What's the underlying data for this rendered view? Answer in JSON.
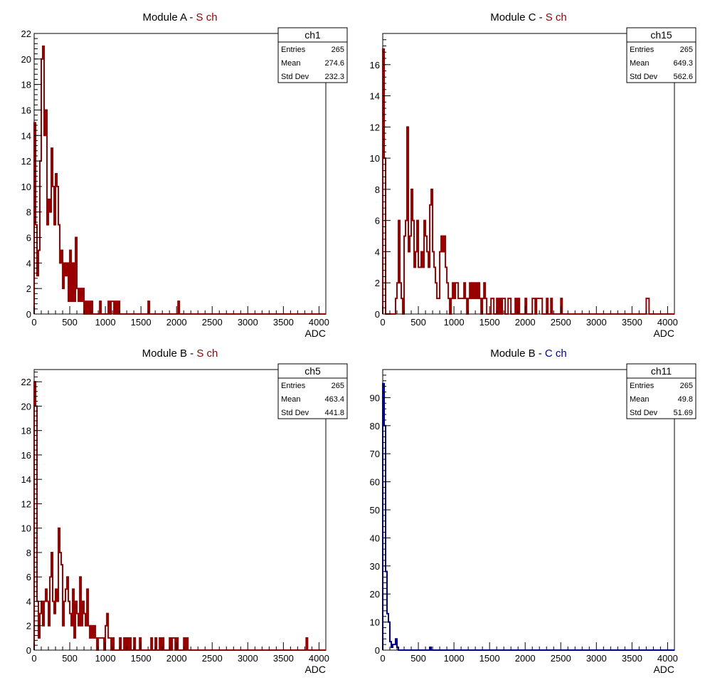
{
  "colors": {
    "s_channel": "#990000",
    "c_channel": "#000099",
    "axis": "#000000",
    "title_prefix": "#000000"
  },
  "chart_data": [
    {
      "type": "histogram",
      "title_prefix": "Module A - ",
      "title_channel": "S ch",
      "channel_color": "s_channel",
      "xlabel": "ADC",
      "ylabel": "",
      "xlim": [
        0,
        4096
      ],
      "ylim": [
        0,
        22
      ],
      "xticks": [
        0,
        500,
        1000,
        1500,
        2000,
        2500,
        3000,
        3500,
        4000
      ],
      "yticks": [
        0,
        2,
        4,
        6,
        8,
        10,
        12,
        14,
        16,
        18,
        20,
        22
      ],
      "grid": false,
      "bin_width": 20,
      "stats": {
        "name": "ch1",
        "rows": [
          [
            "Entries",
            "265"
          ],
          [
            "Mean",
            "274.6"
          ],
          [
            "Std Dev",
            "232.3"
          ]
        ]
      },
      "bins": [
        [
          0,
          15
        ],
        [
          20,
          7
        ],
        [
          40,
          3
        ],
        [
          60,
          5
        ],
        [
          80,
          12
        ],
        [
          100,
          20
        ],
        [
          120,
          21
        ],
        [
          140,
          14
        ],
        [
          160,
          16
        ],
        [
          180,
          7
        ],
        [
          200,
          9
        ],
        [
          220,
          8
        ],
        [
          240,
          13
        ],
        [
          260,
          10
        ],
        [
          280,
          7
        ],
        [
          300,
          11
        ],
        [
          320,
          10
        ],
        [
          340,
          7
        ],
        [
          360,
          4
        ],
        [
          380,
          5
        ],
        [
          400,
          2
        ],
        [
          420,
          4
        ],
        [
          440,
          3
        ],
        [
          460,
          4
        ],
        [
          480,
          1
        ],
        [
          500,
          5
        ],
        [
          520,
          1
        ],
        [
          540,
          4
        ],
        [
          560,
          1
        ],
        [
          580,
          6
        ],
        [
          600,
          2
        ],
        [
          620,
          1
        ],
        [
          640,
          2
        ],
        [
          660,
          1
        ],
        [
          680,
          2
        ],
        [
          720,
          1
        ],
        [
          760,
          1
        ],
        [
          800,
          1
        ],
        [
          920,
          1
        ],
        [
          1040,
          1
        ],
        [
          1080,
          1
        ],
        [
          1100,
          1
        ],
        [
          1140,
          1
        ],
        [
          1180,
          1
        ],
        [
          1600,
          1
        ],
        [
          2020,
          1
        ]
      ]
    },
    {
      "type": "histogram",
      "title_prefix": "Module C - ",
      "title_channel": "S ch",
      "channel_color": "s_channel",
      "xlabel": "ADC",
      "ylabel": "",
      "xlim": [
        0,
        4096
      ],
      "ylim": [
        0,
        18
      ],
      "xticks": [
        0,
        500,
        1000,
        1500,
        2000,
        2500,
        3000,
        3500,
        4000
      ],
      "yticks": [
        0,
        2,
        4,
        6,
        8,
        10,
        12,
        14,
        16
      ],
      "grid": false,
      "bin_width": 20,
      "stats": {
        "name": "ch15",
        "rows": [
          [
            "Entries",
            "265"
          ],
          [
            "Mean",
            "649.3"
          ],
          [
            "Std Dev",
            "562.6"
          ]
        ]
      },
      "bins": [
        [
          0,
          17
        ],
        [
          20,
          10
        ],
        [
          180,
          1
        ],
        [
          200,
          2
        ],
        [
          220,
          6
        ],
        [
          240,
          2
        ],
        [
          260,
          1
        ],
        [
          300,
          5
        ],
        [
          320,
          6
        ],
        [
          340,
          12
        ],
        [
          360,
          4
        ],
        [
          380,
          5
        ],
        [
          400,
          8
        ],
        [
          420,
          6
        ],
        [
          440,
          3
        ],
        [
          460,
          4
        ],
        [
          480,
          6
        ],
        [
          500,
          3
        ],
        [
          520,
          3
        ],
        [
          540,
          4
        ],
        [
          560,
          3
        ],
        [
          580,
          6
        ],
        [
          600,
          5
        ],
        [
          620,
          4
        ],
        [
          640,
          3
        ],
        [
          660,
          7
        ],
        [
          680,
          8
        ],
        [
          700,
          4
        ],
        [
          720,
          3
        ],
        [
          740,
          2
        ],
        [
          760,
          1
        ],
        [
          780,
          1
        ],
        [
          800,
          4
        ],
        [
          820,
          5
        ],
        [
          840,
          4
        ],
        [
          860,
          5
        ],
        [
          880,
          3
        ],
        [
          900,
          2
        ],
        [
          920,
          1
        ],
        [
          960,
          1
        ],
        [
          980,
          2
        ],
        [
          1000,
          1
        ],
        [
          1020,
          2
        ],
        [
          1040,
          2
        ],
        [
          1060,
          1
        ],
        [
          1080,
          1
        ],
        [
          1100,
          1
        ],
        [
          1120,
          1
        ],
        [
          1140,
          2
        ],
        [
          1160,
          1
        ],
        [
          1200,
          1
        ],
        [
          1220,
          2
        ],
        [
          1240,
          1
        ],
        [
          1260,
          2
        ],
        [
          1280,
          1
        ],
        [
          1300,
          2
        ],
        [
          1320,
          1
        ],
        [
          1340,
          2
        ],
        [
          1360,
          1
        ],
        [
          1400,
          1
        ],
        [
          1420,
          2
        ],
        [
          1440,
          1
        ],
        [
          1520,
          1
        ],
        [
          1540,
          1
        ],
        [
          1600,
          1
        ],
        [
          1640,
          1
        ],
        [
          1680,
          1
        ],
        [
          1700,
          1
        ],
        [
          1760,
          1
        ],
        [
          1780,
          1
        ],
        [
          1860,
          1
        ],
        [
          1900,
          1
        ],
        [
          2000,
          1
        ],
        [
          2100,
          1
        ],
        [
          2120,
          1
        ],
        [
          2160,
          1
        ],
        [
          2180,
          1
        ],
        [
          2200,
          1
        ],
        [
          2220,
          1
        ],
        [
          2300,
          1
        ],
        [
          2360,
          1
        ],
        [
          2500,
          1
        ],
        [
          3700,
          1
        ],
        [
          3720,
          1
        ]
      ]
    },
    {
      "type": "histogram",
      "title_prefix": "Module B - ",
      "title_channel": "S ch",
      "channel_color": "s_channel",
      "xlabel": "ADC",
      "ylabel": "",
      "xlim": [
        0,
        4096
      ],
      "ylim": [
        0,
        23
      ],
      "xticks": [
        0,
        500,
        1000,
        1500,
        2000,
        2500,
        3000,
        3500,
        4000
      ],
      "yticks": [
        0,
        2,
        4,
        6,
        8,
        10,
        12,
        14,
        16,
        18,
        20,
        22
      ],
      "grid": false,
      "bin_width": 20,
      "stats": {
        "name": "ch5",
        "rows": [
          [
            "Entries",
            "265"
          ],
          [
            "Mean",
            "463.4"
          ],
          [
            "Std Dev",
            "441.8"
          ]
        ]
      },
      "bins": [
        [
          0,
          22
        ],
        [
          20,
          20
        ],
        [
          40,
          4
        ],
        [
          60,
          1
        ],
        [
          80,
          3
        ],
        [
          100,
          4
        ],
        [
          120,
          2
        ],
        [
          140,
          4
        ],
        [
          160,
          5
        ],
        [
          180,
          4
        ],
        [
          200,
          2
        ],
        [
          220,
          6
        ],
        [
          240,
          8
        ],
        [
          260,
          4
        ],
        [
          280,
          3
        ],
        [
          300,
          5
        ],
        [
          320,
          4
        ],
        [
          340,
          10
        ],
        [
          360,
          8
        ],
        [
          380,
          7
        ],
        [
          400,
          2
        ],
        [
          420,
          4
        ],
        [
          440,
          5
        ],
        [
          460,
          6
        ],
        [
          480,
          4
        ],
        [
          500,
          3
        ],
        [
          520,
          2
        ],
        [
          540,
          5
        ],
        [
          560,
          1
        ],
        [
          580,
          4
        ],
        [
          600,
          3
        ],
        [
          620,
          2
        ],
        [
          640,
          6
        ],
        [
          660,
          2
        ],
        [
          680,
          4
        ],
        [
          700,
          3
        ],
        [
          720,
          2
        ],
        [
          740,
          5
        ],
        [
          760,
          2
        ],
        [
          780,
          1
        ],
        [
          800,
          2
        ],
        [
          820,
          1
        ],
        [
          840,
          2
        ],
        [
          860,
          1
        ],
        [
          900,
          1
        ],
        [
          920,
          1
        ],
        [
          940,
          1
        ],
        [
          960,
          1
        ],
        [
          1000,
          2
        ],
        [
          1020,
          3
        ],
        [
          1040,
          1
        ],
        [
          1060,
          1
        ],
        [
          1100,
          1
        ],
        [
          1200,
          1
        ],
        [
          1260,
          1
        ],
        [
          1300,
          1
        ],
        [
          1340,
          1
        ],
        [
          1400,
          1
        ],
        [
          1480,
          1
        ],
        [
          1640,
          1
        ],
        [
          1700,
          1
        ],
        [
          1760,
          1
        ],
        [
          1800,
          1
        ],
        [
          1900,
          1
        ],
        [
          1940,
          1
        ],
        [
          1960,
          1
        ],
        [
          2000,
          1
        ],
        [
          2100,
          1
        ],
        [
          2140,
          1
        ],
        [
          3820,
          1
        ]
      ]
    },
    {
      "type": "histogram",
      "title_prefix": "Module B - ",
      "title_channel": "C ch",
      "channel_color": "c_channel",
      "xlabel": "ADC",
      "ylabel": "",
      "xlim": [
        0,
        4096
      ],
      "ylim": [
        0,
        100
      ],
      "xticks": [
        0,
        500,
        1000,
        1500,
        2000,
        2500,
        3000,
        3500,
        4000
      ],
      "yticks": [
        0,
        10,
        20,
        30,
        40,
        50,
        60,
        70,
        80,
        90
      ],
      "grid": false,
      "bin_width": 20,
      "stats": {
        "name": "ch11",
        "rows": [
          [
            "Entries",
            "265"
          ],
          [
            "Mean",
            "49.8"
          ],
          [
            "Std Dev",
            "51.69"
          ]
        ]
      },
      "bins": [
        [
          0,
          95
        ],
        [
          20,
          80
        ],
        [
          40,
          28
        ],
        [
          60,
          13
        ],
        [
          80,
          10
        ],
        [
          100,
          3
        ],
        [
          120,
          1
        ],
        [
          140,
          2
        ],
        [
          160,
          2
        ],
        [
          180,
          4
        ],
        [
          200,
          1
        ],
        [
          660,
          1
        ]
      ]
    }
  ]
}
